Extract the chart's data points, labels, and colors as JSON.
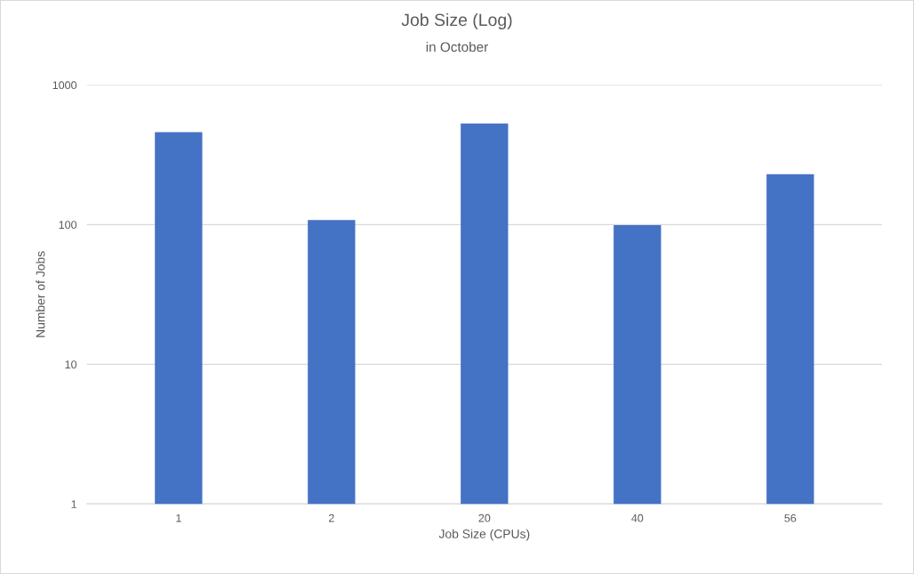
{
  "chart_data": {
    "type": "bar",
    "title": "Job Size (Log)",
    "subtitle": "in October",
    "xlabel": "Job Size (CPUs)",
    "ylabel": "Number of Jobs",
    "categories": [
      "1",
      "2",
      "20",
      "40",
      "56"
    ],
    "values": [
      460,
      108,
      530,
      99,
      230
    ],
    "color": "#4472c4",
    "log": "y",
    "ylim": [
      1,
      1000
    ],
    "yticks": [
      1,
      10,
      100,
      1000
    ],
    "grid": "y"
  }
}
